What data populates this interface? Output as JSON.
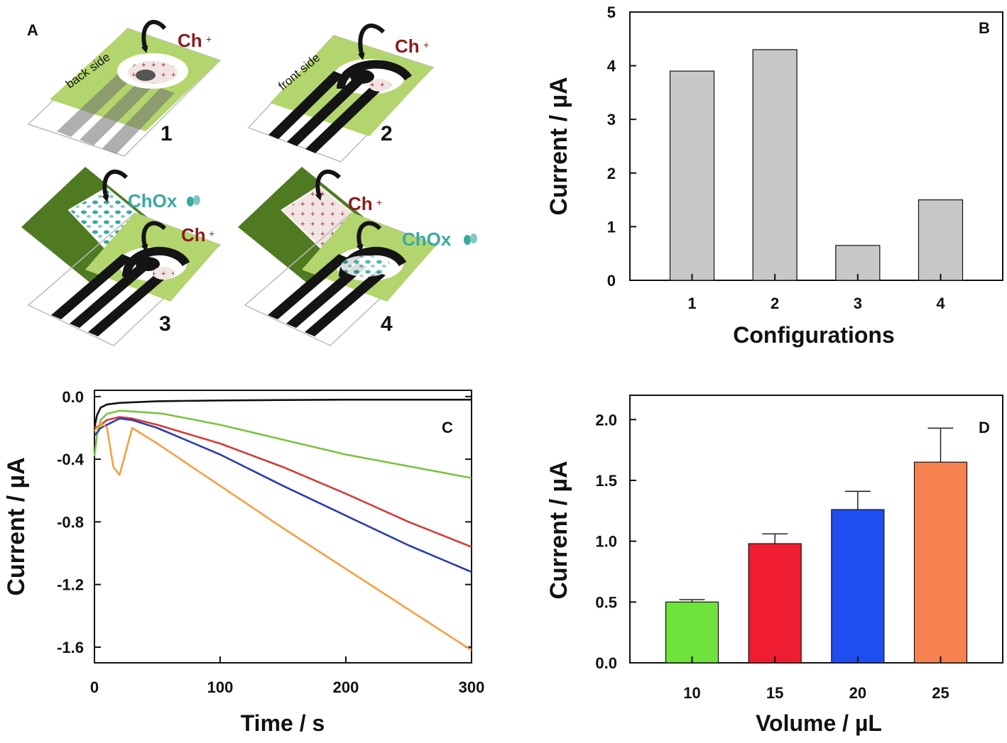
{
  "colors": {
    "light_green": "#b3d56d",
    "dark_green": "#4f7a22",
    "ink": "#141414",
    "ch_red": "#8b1c1c",
    "chox_teal": "#3aa9a0",
    "bar_grey": "#c8c8c8"
  },
  "panel_a": {
    "letter": "A",
    "config1": {
      "side_label": "back side",
      "reagent": "Ch",
      "number": "1"
    },
    "config2": {
      "side_label": "front side",
      "reagent": "Ch",
      "number": "2"
    },
    "config3": {
      "top_reagent": "ChOx",
      "bottom_reagent": "Ch",
      "number": "3"
    },
    "config4": {
      "top_reagent": "Ch",
      "bottom_reagent": "ChOx",
      "number": "4"
    }
  },
  "chart_data": [
    {
      "panel": "B",
      "type": "bar",
      "categories": [
        "1",
        "2",
        "3",
        "4"
      ],
      "values": [
        3.9,
        4.3,
        0.65,
        1.5
      ],
      "xlabel": "Configurations",
      "ylabel": "Current / µA",
      "ylim": [
        0,
        5
      ],
      "yticks": [
        "0",
        "1",
        "2",
        "3",
        "4",
        "5"
      ],
      "bar_color": "#c8c8c8",
      "grid": false
    },
    {
      "panel": "C",
      "type": "line",
      "xlabel": "Time / s",
      "ylabel": "Current / µA",
      "xlim": [
        0,
        300
      ],
      "ylim": [
        -1.7,
        0.04
      ],
      "xticks": [
        "0",
        "100",
        "200",
        "300"
      ],
      "yticks": [
        "0.0",
        "-0.4",
        "-0.8",
        "-1.2",
        "-1.6"
      ],
      "grid": false,
      "series": [
        {
          "color": "#111111",
          "x": [
            0,
            2,
            5,
            10,
            20,
            50,
            100,
            200,
            300
          ],
          "y": [
            -0.2,
            -0.12,
            -0.07,
            -0.05,
            -0.04,
            -0.03,
            -0.025,
            -0.02,
            -0.02
          ]
        },
        {
          "color": "#7cc242",
          "x": [
            0,
            2,
            5,
            10,
            20,
            40,
            55,
            100,
            200,
            300
          ],
          "y": [
            -0.38,
            -0.25,
            -0.15,
            -0.11,
            -0.09,
            -0.1,
            -0.11,
            -0.18,
            -0.37,
            -0.52
          ]
        },
        {
          "color": "#d33a3a",
          "x": [
            0,
            5,
            10,
            20,
            30,
            50,
            100,
            150,
            200,
            250,
            300
          ],
          "y": [
            -0.2,
            -0.18,
            -0.15,
            -0.13,
            -0.14,
            -0.18,
            -0.3,
            -0.45,
            -0.62,
            -0.8,
            -0.96
          ]
        },
        {
          "color": "#2a3ea8",
          "x": [
            0,
            5,
            10,
            20,
            30,
            50,
            100,
            150,
            200,
            250,
            300
          ],
          "y": [
            -0.25,
            -0.2,
            -0.18,
            -0.14,
            -0.15,
            -0.2,
            -0.37,
            -0.57,
            -0.76,
            -0.95,
            -1.12
          ]
        },
        {
          "color": "#f4a142",
          "x": [
            0,
            5,
            10,
            15,
            20,
            30,
            50,
            100,
            150,
            200,
            250,
            300
          ],
          "y": [
            -0.22,
            -0.17,
            -0.2,
            -0.45,
            -0.5,
            -0.2,
            -0.3,
            -0.57,
            -0.84,
            -1.1,
            -1.36,
            -1.62
          ]
        }
      ]
    },
    {
      "panel": "D",
      "type": "bar",
      "categories": [
        "10",
        "15",
        "20",
        "25"
      ],
      "values": [
        0.5,
        0.98,
        1.26,
        1.65
      ],
      "errors": [
        0.02,
        0.08,
        0.15,
        0.28
      ],
      "colors": [
        "#6fe23b",
        "#f01c32",
        "#1f4ef0",
        "#f5824f"
      ],
      "xlabel": "Volume / µL",
      "ylabel": "Current / µA",
      "ylim": [
        0,
        2.2
      ],
      "yticks": [
        "0.0",
        "0.5",
        "1.0",
        "1.5",
        "2.0"
      ],
      "grid": false
    }
  ]
}
